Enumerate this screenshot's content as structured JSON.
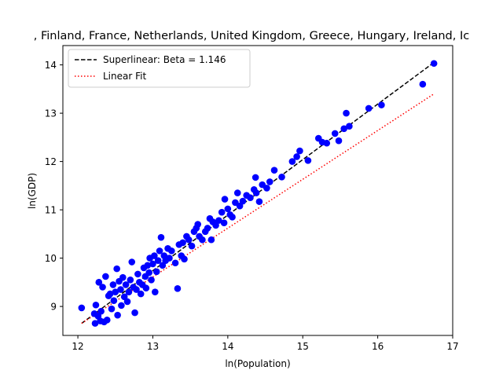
{
  "chart_data": {
    "type": "scatter",
    "title": ", Finland, France, Netherlands, United Kingdom, Greece, Hungary, Ireland, Ic",
    "xlabel": "ln(Population)",
    "ylabel": "ln(GDP)",
    "xlim": [
      11.8,
      17.0
    ],
    "ylim": [
      8.4,
      14.4
    ],
    "xticks": [
      "12",
      "13",
      "14",
      "15",
      "16",
      "17"
    ],
    "xtick_values": [
      12,
      13,
      14,
      15,
      16,
      17
    ],
    "yticks": [
      "9",
      "10",
      "11",
      "12",
      "13",
      "14"
    ],
    "ytick_values": [
      9,
      10,
      11,
      12,
      13,
      14
    ],
    "grid": false,
    "legend_position": "top-left",
    "colors": {
      "points": "#0000ff",
      "superlinear": "#000000",
      "linear": "#ff0000",
      "axes": "#000000",
      "legend_border": "#cccccc"
    },
    "series": [
      {
        "name": "Superlinear: Beta = 1.146",
        "kind": "line",
        "style": "dashed",
        "x": [
          12.05,
          16.75
        ],
        "y": [
          8.65,
          14.05
        ]
      },
      {
        "name": "Linear Fit",
        "kind": "line",
        "style": "dotted",
        "x": [
          12.05,
          16.75
        ],
        "y": [
          8.65,
          13.4
        ]
      },
      {
        "kind": "scatter",
        "points": [
          [
            12.05,
            8.97
          ],
          [
            12.22,
            8.85
          ],
          [
            12.23,
            8.65
          ],
          [
            12.24,
            9.03
          ],
          [
            12.27,
            8.8
          ],
          [
            12.28,
            9.5
          ],
          [
            12.3,
            8.7
          ],
          [
            12.31,
            8.9
          ],
          [
            12.33,
            9.4
          ],
          [
            12.35,
            8.68
          ],
          [
            12.37,
            9.62
          ],
          [
            12.39,
            8.72
          ],
          [
            12.41,
            9.22
          ],
          [
            12.43,
            9.26
          ],
          [
            12.45,
            8.95
          ],
          [
            12.47,
            9.45
          ],
          [
            12.48,
            9.12
          ],
          [
            12.5,
            9.3
          ],
          [
            12.52,
            9.78
          ],
          [
            12.53,
            8.82
          ],
          [
            12.55,
            9.52
          ],
          [
            12.57,
            9.35
          ],
          [
            12.58,
            9.02
          ],
          [
            12.6,
            9.6
          ],
          [
            12.62,
            9.2
          ],
          [
            12.64,
            9.45
          ],
          [
            12.66,
            9.1
          ],
          [
            12.68,
            9.3
          ],
          [
            12.7,
            9.55
          ],
          [
            12.72,
            9.92
          ],
          [
            12.74,
            9.4
          ],
          [
            12.76,
            8.87
          ],
          [
            12.78,
            9.35
          ],
          [
            12.8,
            9.67
          ],
          [
            12.82,
            9.5
          ],
          [
            12.84,
            9.26
          ],
          [
            12.86,
            9.45
          ],
          [
            12.88,
            9.8
          ],
          [
            12.9,
            9.62
          ],
          [
            12.91,
            9.38
          ],
          [
            12.93,
            9.85
          ],
          [
            12.95,
            9.7
          ],
          [
            12.96,
            10.0
          ],
          [
            12.98,
            9.55
          ],
          [
            13.0,
            9.88
          ],
          [
            13.02,
            10.05
          ],
          [
            13.03,
            9.3
          ],
          [
            13.05,
            9.72
          ],
          [
            13.07,
            9.95
          ],
          [
            13.09,
            10.15
          ],
          [
            13.11,
            10.43
          ],
          [
            13.13,
            9.85
          ],
          [
            13.15,
            10.05
          ],
          [
            13.17,
            9.95
          ],
          [
            13.2,
            10.2
          ],
          [
            13.22,
            10.0
          ],
          [
            13.25,
            10.15
          ],
          [
            13.3,
            9.9
          ],
          [
            13.33,
            9.37
          ],
          [
            13.35,
            10.28
          ],
          [
            13.38,
            10.05
          ],
          [
            13.4,
            10.32
          ],
          [
            13.42,
            9.98
          ],
          [
            13.45,
            10.45
          ],
          [
            13.48,
            10.38
          ],
          [
            13.52,
            10.25
          ],
          [
            13.55,
            10.55
          ],
          [
            13.58,
            10.62
          ],
          [
            13.6,
            10.7
          ],
          [
            13.62,
            10.45
          ],
          [
            13.66,
            10.38
          ],
          [
            13.7,
            10.55
          ],
          [
            13.73,
            10.62
          ],
          [
            13.76,
            10.82
          ],
          [
            13.78,
            10.38
          ],
          [
            13.8,
            10.75
          ],
          [
            13.84,
            10.68
          ],
          [
            13.88,
            10.78
          ],
          [
            13.92,
            10.95
          ],
          [
            13.95,
            10.73
          ],
          [
            13.96,
            11.22
          ],
          [
            14.0,
            11.02
          ],
          [
            14.03,
            10.9
          ],
          [
            14.06,
            10.85
          ],
          [
            14.1,
            11.15
          ],
          [
            14.13,
            11.35
          ],
          [
            14.16,
            11.08
          ],
          [
            14.2,
            11.18
          ],
          [
            14.25,
            11.3
          ],
          [
            14.3,
            11.25
          ],
          [
            14.35,
            11.42
          ],
          [
            14.37,
            11.67
          ],
          [
            14.38,
            11.35
          ],
          [
            14.42,
            11.17
          ],
          [
            14.46,
            11.52
          ],
          [
            14.52,
            11.45
          ],
          [
            14.56,
            11.58
          ],
          [
            14.62,
            11.82
          ],
          [
            14.72,
            11.68
          ],
          [
            14.86,
            12.0
          ],
          [
            14.92,
            12.1
          ],
          [
            14.96,
            12.22
          ],
          [
            15.07,
            12.02
          ],
          [
            15.21,
            12.48
          ],
          [
            15.26,
            12.4
          ],
          [
            15.32,
            12.38
          ],
          [
            15.43,
            12.58
          ],
          [
            15.48,
            12.43
          ],
          [
            15.55,
            12.68
          ],
          [
            15.58,
            13.0
          ],
          [
            15.62,
            12.73
          ],
          [
            15.88,
            13.1
          ],
          [
            16.05,
            13.17
          ],
          [
            16.6,
            13.6
          ],
          [
            16.75,
            14.03
          ]
        ]
      }
    ]
  }
}
